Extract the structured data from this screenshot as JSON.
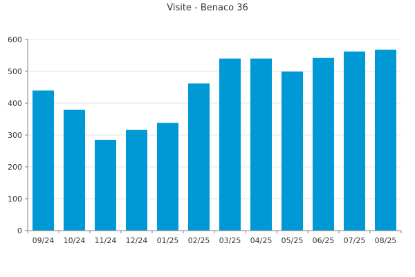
{
  "chart_data": {
    "type": "bar",
    "title": "Visite - Benaco 36",
    "categories": [
      "09/24",
      "10/24",
      "11/24",
      "12/24",
      "01/25",
      "02/25",
      "03/25",
      "04/25",
      "05/25",
      "06/25",
      "07/25",
      "08/25"
    ],
    "values": [
      440,
      379,
      285,
      316,
      338,
      462,
      540,
      540,
      499,
      542,
      562,
      568
    ],
    "ylim": [
      0,
      600
    ],
    "yticks": [
      0,
      100,
      200,
      300,
      400,
      500,
      600
    ],
    "grid": true,
    "legend": "none",
    "bar_color": "#0099d6"
  }
}
